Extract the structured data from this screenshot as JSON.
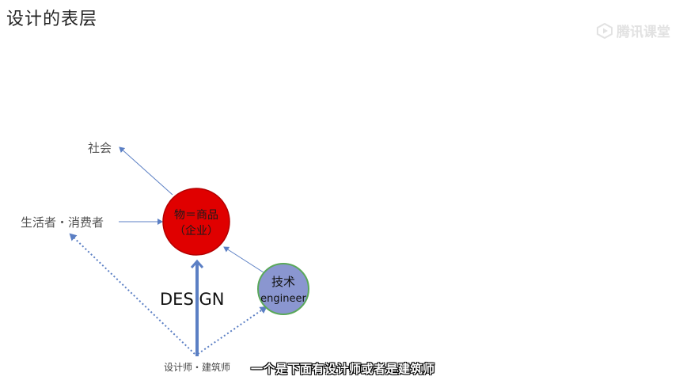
{
  "title": "设计的表层",
  "watermark": {
    "text": "腾讯课堂",
    "icon": "play-logo-icon"
  },
  "diagram": {
    "society": "社会",
    "consumer": "生活者・消费者",
    "product_line1": "物＝商品",
    "product_line2": "（企业）",
    "tech_line1": "技术",
    "tech_line2": "engineer",
    "design": "DES GN",
    "designer": "设计师・建筑师"
  },
  "colors": {
    "product_fill": "#e00000",
    "product_stroke": "#b30000",
    "tech_fill": "#8a96d0",
    "tech_stroke": "#5aa85a",
    "arrow": "#5b7fc4"
  },
  "subtitle": "一个是下面有设计师或者是建筑师"
}
